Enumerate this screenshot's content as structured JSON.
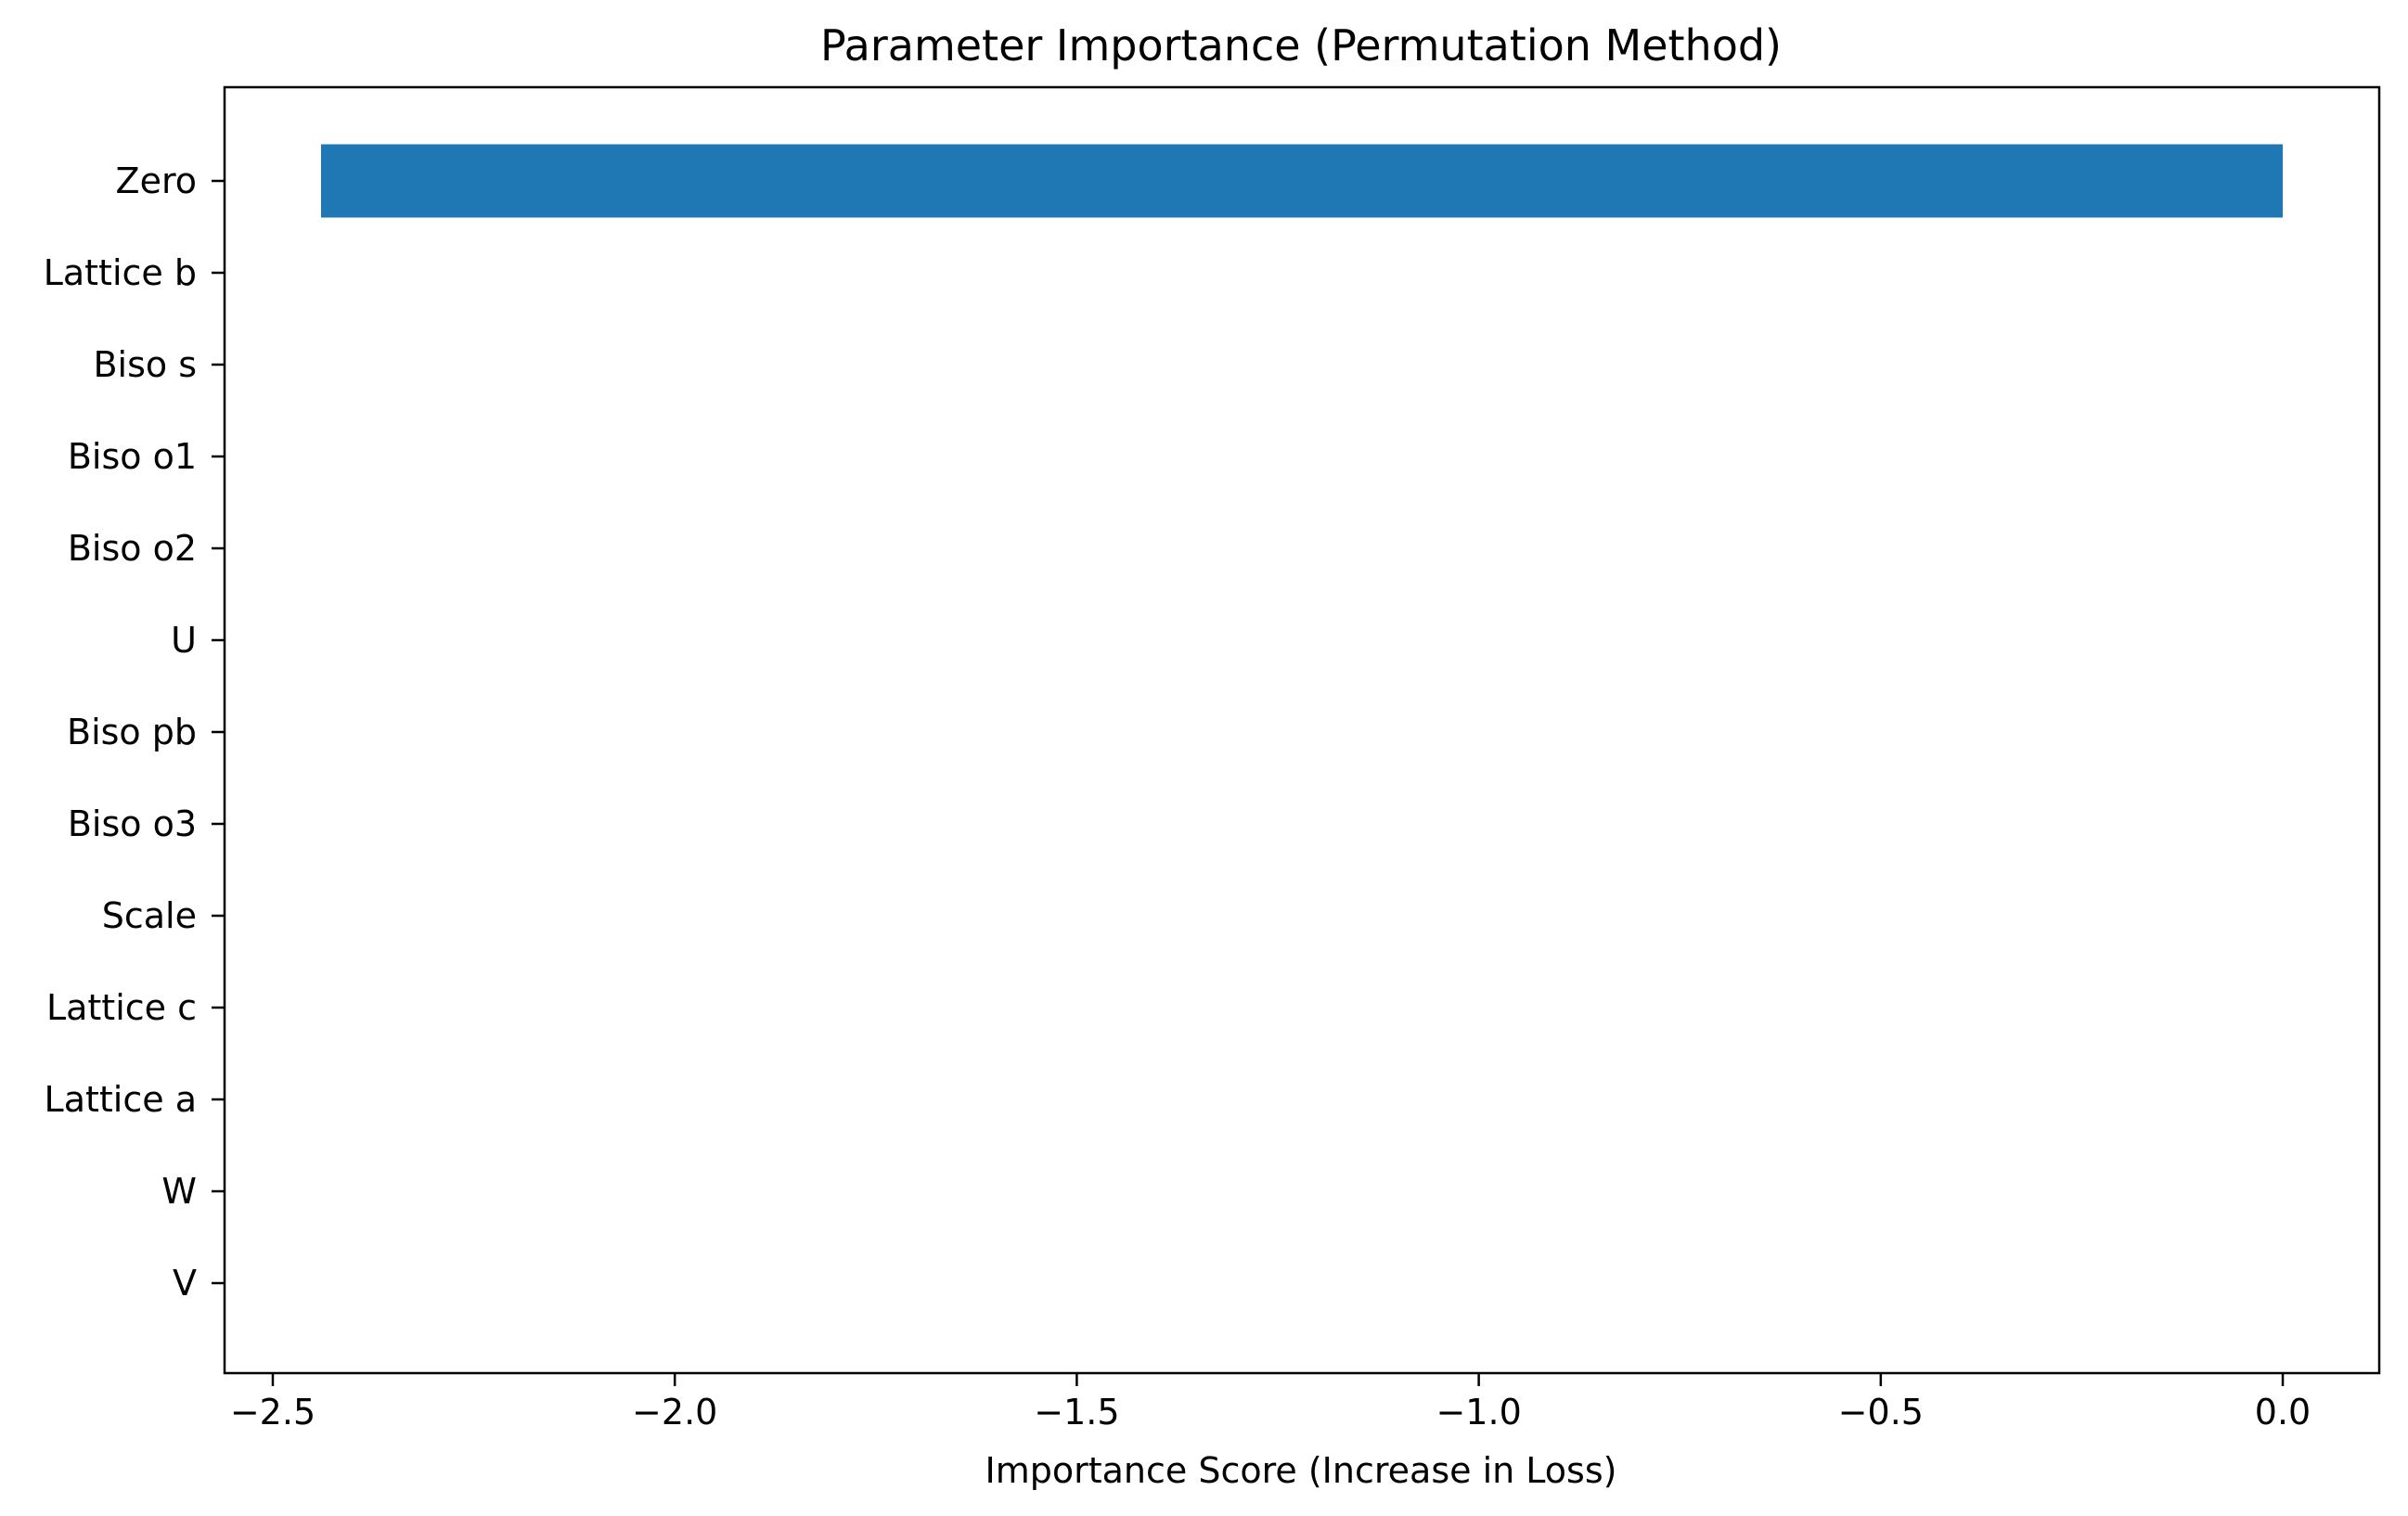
{
  "chart_data": {
    "type": "bar",
    "orientation": "horizontal",
    "title": "Parameter Importance (Permutation Method)",
    "xlabel": "Importance Score (Increase in Loss)",
    "ylabel": "",
    "categories": [
      "Zero",
      "Lattice b",
      "Biso s",
      "Biso o1",
      "Biso o2",
      "U",
      "Biso pb",
      "Biso o3",
      "Scale",
      "Lattice c",
      "Lattice a",
      "W",
      "V"
    ],
    "values": [
      -2.44,
      0,
      0,
      0,
      0,
      0,
      0,
      0,
      0,
      0,
      0,
      0,
      0
    ],
    "xlim": [
      -2.56,
      0.12
    ],
    "xticks": [
      -2.5,
      -2.0,
      -1.5,
      -1.0,
      -0.5,
      0.0
    ],
    "xtick_labels": [
      "−2.5",
      "−2.0",
      "−1.5",
      "−1.0",
      "−0.5",
      "0.0"
    ],
    "bar_color": "#1f77b4",
    "grid": false,
    "legend": "none"
  }
}
